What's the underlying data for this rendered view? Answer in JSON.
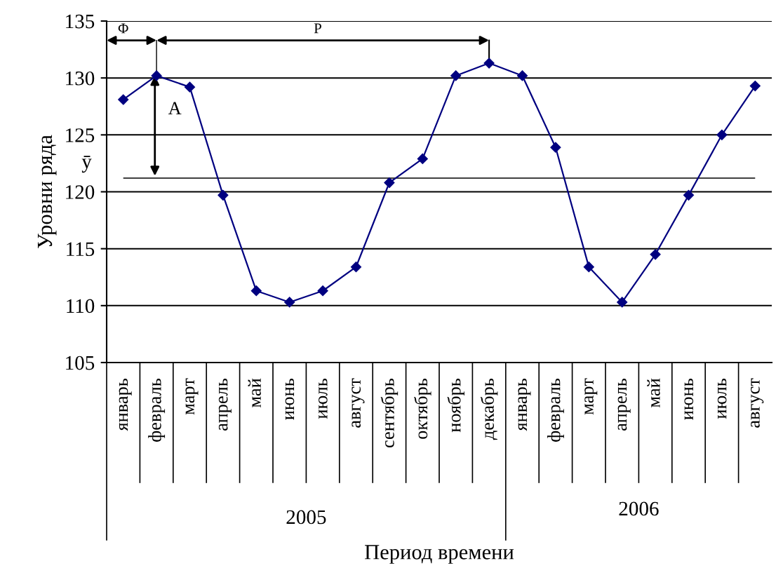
{
  "chart_data": {
    "type": "line",
    "xlabel": "Период времени",
    "ylabel": "Уровни ряда",
    "categories": [
      "январь",
      "февраль",
      "март",
      "апрель",
      "май",
      "июнь",
      "июль",
      "август",
      "сентябрь",
      "октябрь",
      "ноябрь",
      "декабрь",
      "январь",
      "февраль",
      "март",
      "апрель",
      "май",
      "июнь",
      "июль",
      "август"
    ],
    "series": [
      {
        "color": "#000080",
        "values": [
          128.1,
          130.2,
          129.2,
          119.7,
          111.3,
          110.3,
          111.3,
          113.4,
          120.8,
          122.9,
          130.2,
          131.3,
          130.2,
          123.9,
          113.4,
          110.3,
          114.5,
          119.7,
          125.0,
          129.3
        ]
      }
    ],
    "ylim": [
      105,
      135
    ],
    "yticks": [
      105,
      110,
      115,
      120,
      125,
      130,
      135
    ],
    "grid": "y",
    "marker": "diamond",
    "line_style": "solid",
    "legend": false,
    "ref_lines": [
      {
        "axis": "y",
        "value": 121.2,
        "label": "ȳ",
        "color": "#000000"
      }
    ],
    "annotations": [
      "Φ",
      "P",
      "A",
      "2005",
      "2006"
    ]
  }
}
